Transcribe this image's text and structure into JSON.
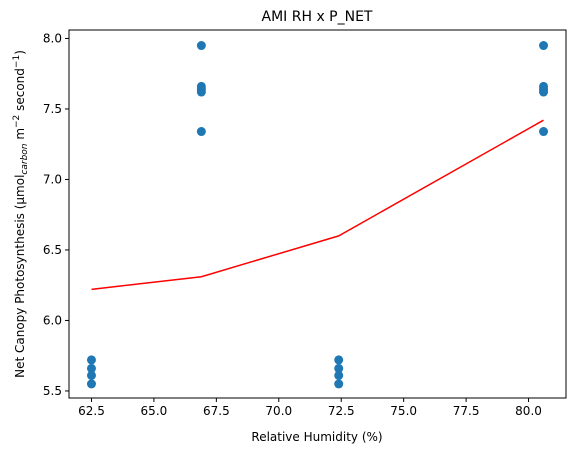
{
  "chart_data": {
    "type": "scatter",
    "title": "AMI RH x P_NET",
    "xlabel": "Relative Humidity (%)",
    "ylabel": {
      "pre": "Net Canopy Photosynthesis (µmol",
      "sub": "carbon",
      "mid1": " m",
      "sup1": "−2",
      "mid2": " second",
      "sup2": "−1",
      "post": ")"
    },
    "xlim": [
      61.6,
      81.5
    ],
    "ylim": [
      5.45,
      8.06
    ],
    "x_ticks": [
      62.5,
      65.0,
      67.5,
      70.0,
      72.5,
      75.0,
      77.5,
      80.0
    ],
    "x_tick_labels": [
      "62.5",
      "65.0",
      "67.5",
      "70.0",
      "72.5",
      "75.0",
      "77.5",
      "80.0"
    ],
    "y_ticks": [
      5.5,
      6.0,
      6.5,
      7.0,
      7.5,
      8.0
    ],
    "y_tick_labels": [
      "5.5",
      "6.0",
      "6.5",
      "7.0",
      "7.5",
      "8.0"
    ],
    "grid": false,
    "series": [
      {
        "kind": "scatter",
        "color": "#1f77b4",
        "points": [
          [
            62.5,
            5.72
          ],
          [
            62.5,
            5.66
          ],
          [
            62.5,
            5.61
          ],
          [
            62.5,
            5.55
          ],
          [
            66.9,
            7.95
          ],
          [
            66.9,
            7.66
          ],
          [
            66.9,
            7.64
          ],
          [
            66.9,
            7.62
          ],
          [
            66.9,
            7.34
          ],
          [
            72.4,
            5.72
          ],
          [
            72.4,
            5.66
          ],
          [
            72.4,
            5.61
          ],
          [
            72.4,
            5.55
          ],
          [
            80.6,
            7.95
          ],
          [
            80.6,
            7.66
          ],
          [
            80.6,
            7.64
          ],
          [
            80.6,
            7.62
          ],
          [
            80.6,
            7.34
          ]
        ]
      },
      {
        "kind": "line",
        "color": "#ff0000",
        "points": [
          [
            62.5,
            6.22
          ],
          [
            66.9,
            6.31
          ],
          [
            72.4,
            6.6
          ],
          [
            80.6,
            7.42
          ]
        ]
      }
    ]
  }
}
